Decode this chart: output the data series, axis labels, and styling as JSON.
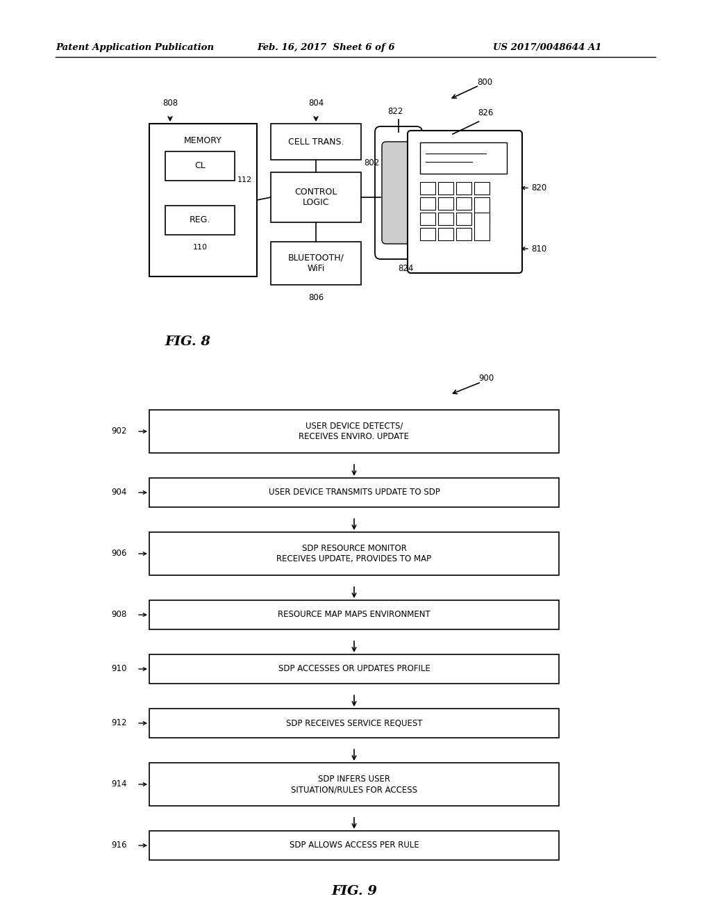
{
  "bg_color": "#ffffff",
  "header_left": "Patent Application Publication",
  "header_mid": "Feb. 16, 2017  Sheet 6 of 6",
  "header_right": "US 2017/0048644 A1",
  "fig8_label": "FIG. 8",
  "fig9_label": "FIG. 9",
  "fig9_steps": [
    {
      "id": "902",
      "text": "USER DEVICE DETECTS/\nRECEIVES ENVIRO. UPDATE",
      "multiline": true
    },
    {
      "id": "904",
      "text": "USER DEVICE TRANSMITS UPDATE TO SDP",
      "multiline": false
    },
    {
      "id": "906",
      "text": "SDP RESOURCE MONITOR\nRECEIVES UPDATE, PROVIDES TO MAP",
      "multiline": true
    },
    {
      "id": "908",
      "text": "RESOURCE MAP MAPS ENVIRONMENT",
      "multiline": false
    },
    {
      "id": "910",
      "text": "SDP ACCESSES OR UPDATES PROFILE",
      "multiline": false
    },
    {
      "id": "912",
      "text": "SDP RECEIVES SERVICE REQUEST",
      "multiline": false
    },
    {
      "id": "914",
      "text": "SDP INFERS USER\nSITUATION/RULES FOR ACCESS",
      "multiline": true
    },
    {
      "id": "916",
      "text": "SDP ALLOWS ACCESS PER RULE",
      "multiline": false
    }
  ]
}
